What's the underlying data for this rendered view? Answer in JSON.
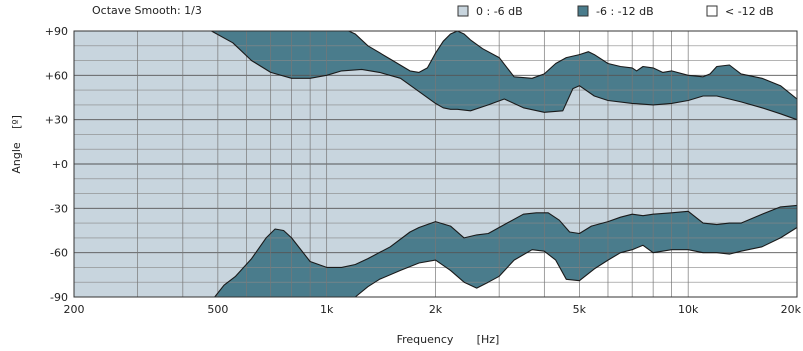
{
  "chart_data": {
    "type": "area",
    "title": "Octave Smooth: 1/3",
    "xlabel": "Frequency",
    "xunit": "[Hz]",
    "ylabel": "Angle",
    "yunit": "[º]",
    "xscale": "log",
    "xlim": [
      200,
      20000
    ],
    "ylim": [
      -90,
      90
    ],
    "x_ticks": [
      200,
      500,
      1000,
      2000,
      5000,
      10000,
      20000
    ],
    "x_tick_labels": [
      "200",
      "500",
      "1k",
      "2k",
      "5k",
      "10k",
      "20k"
    ],
    "y_ticks": [
      90,
      60,
      30,
      0,
      -30,
      -60,
      -90
    ],
    "y_tick_labels": [
      "+90",
      "+60",
      "+30",
      "+0",
      "-30",
      "-60",
      "-90"
    ],
    "grid": true,
    "legend_position": "top",
    "legend": [
      {
        "label": "0 : -6 dB",
        "color": "#c8d5de"
      },
      {
        "label": "-6 : -12 dB",
        "color": "#4a7c8c"
      },
      {
        "label": "< -12 dB",
        "color": "#ffffff"
      }
    ],
    "contours": {
      "upper_6dB": {
        "x": [
          200,
          480,
          550,
          620,
          700,
          800,
          900,
          1000,
          1100,
          1250,
          1400,
          1600,
          1800,
          2000,
          2100,
          2200,
          2300,
          2500,
          2800,
          3100,
          3500,
          4000,
          4500,
          4800,
          5000,
          5500,
          6000,
          7000,
          8000,
          9000,
          10000,
          11000,
          12000,
          13000,
          14000,
          16000,
          18000,
          20000
        ],
        "y": [
          90,
          90,
          82,
          70,
          62,
          58,
          58,
          60,
          63,
          64,
          62,
          58,
          49,
          41,
          38,
          37,
          37,
          36,
          40,
          44,
          38,
          35,
          36,
          51,
          53,
          46,
          43,
          41,
          40,
          41,
          43,
          46,
          46,
          44,
          42,
          38,
          34,
          30
        ]
      },
      "upper_12dB": {
        "x": [
          1150,
          1200,
          1300,
          1500,
          1700,
          1800,
          1900,
          2000,
          2100,
          2200,
          2300,
          2400,
          2500,
          2700,
          3000,
          3300,
          3700,
          4000,
          4300,
          4600,
          5000,
          5300,
          5500,
          6000,
          6500,
          7000,
          7200,
          7500,
          8000,
          8500,
          9000,
          10000,
          11000,
          11500,
          12000,
          13000,
          14000,
          16000,
          18000,
          20000
        ],
        "y": [
          90,
          88,
          80,
          71,
          63,
          62,
          65,
          75,
          83,
          88,
          90,
          88,
          84,
          78,
          72,
          59,
          58,
          61,
          68,
          72,
          74,
          76,
          74,
          68,
          66,
          65,
          63,
          66,
          65,
          62,
          63,
          60,
          59,
          61,
          66,
          67,
          61,
          58,
          53,
          44
        ]
      },
      "lower_6dB": {
        "x": [
          200,
          490,
          520,
          560,
          620,
          680,
          720,
          760,
          800,
          900,
          1000,
          1100,
          1200,
          1300,
          1500,
          1700,
          1800,
          2000,
          2200,
          2400,
          2600,
          2800,
          3100,
          3500,
          3800,
          4100,
          4400,
          4700,
          5000,
          5400,
          6000,
          6500,
          7000,
          7500,
          8000,
          9000,
          10000,
          11000,
          12000,
          13000,
          14000,
          16000,
          18000,
          20000
        ],
        "y": [
          -90,
          -90,
          -82,
          -76,
          -64,
          -50,
          -44,
          -45,
          -50,
          -66,
          -70,
          -70,
          -68,
          -64,
          -56,
          -46,
          -43,
          -39,
          -42,
          -50,
          -48,
          -47,
          -41,
          -34,
          -33,
          -33,
          -38,
          -46,
          -47,
          -42,
          -39,
          -36,
          -34,
          -35,
          -34,
          -33,
          -32,
          -40,
          -41,
          -40,
          -40,
          -34,
          -29,
          -28
        ]
      },
      "lower_12dB": {
        "x": [
          1200,
          1300,
          1400,
          1600,
          1800,
          2000,
          2200,
          2400,
          2600,
          2800,
          3000,
          3300,
          3700,
          4000,
          4300,
          4600,
          5000,
          5500,
          6000,
          6500,
          7000,
          7500,
          8000,
          9000,
          10000,
          11000,
          12000,
          13000,
          14000,
          16000,
          18000,
          20000
        ],
        "y": [
          -90,
          -83,
          -78,
          -72,
          -67,
          -65,
          -72,
          -80,
          -84,
          -80,
          -76,
          -65,
          -58,
          -59,
          -65,
          -78,
          -79,
          -71,
          -65,
          -60,
          -58,
          -55,
          -60,
          -58,
          -58,
          -60,
          -60,
          -61,
          -59,
          -56,
          -50,
          -43
        ]
      }
    }
  }
}
